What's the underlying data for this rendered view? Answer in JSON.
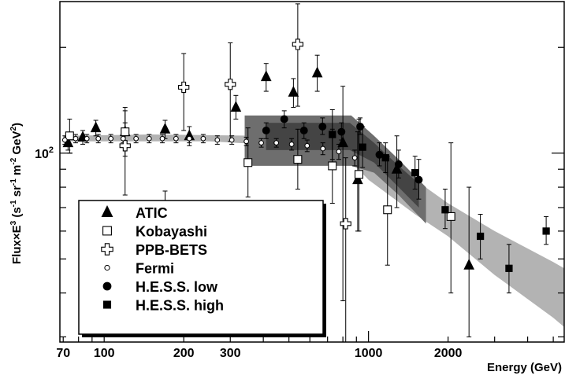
{
  "chart_data": {
    "type": "scatter",
    "xlabel": "Energy (GeV)",
    "ylabel": "Flux×E³ (s⁻¹ sr⁻¹ m⁻² GeV²)",
    "ylabel_parts": {
      "main": "Flux×E",
      "exp3": "3",
      "open": " (s",
      "e1": "-1",
      "sr": " sr",
      "e2": "-1",
      "m": " m",
      "e3": "-2",
      "gev": " GeV",
      "e4": "2",
      "close": ")"
    },
    "xscale": "log",
    "yscale": "log",
    "xlim": [
      68,
      5500
    ],
    "ylim": [
      29,
      270
    ],
    "x_ticks": [
      {
        "value": 70,
        "label": "70"
      },
      {
        "value": 100,
        "label": "100"
      },
      {
        "value": 200,
        "label": "200"
      },
      {
        "value": 300,
        "label": "300"
      },
      {
        "value": 1000,
        "label": "1000"
      },
      {
        "value": 2000,
        "label": "2000"
      }
    ],
    "y_ticks": [
      {
        "value": 100,
        "label_base": "10",
        "label_exp": "2"
      }
    ],
    "legend_position": "bottom-left",
    "legend": [
      {
        "name": "ATIC",
        "marker": "triangle"
      },
      {
        "name": "Kobayashi",
        "marker": "open-square"
      },
      {
        "name": "PPB-BETS",
        "marker": "open-cross"
      },
      {
        "name": "Fermi",
        "marker": "open-circle"
      },
      {
        "name": "H.E.S.S. low",
        "marker": "filled-circle"
      },
      {
        "name": "H.E.S.S. high",
        "marker": "filled-square"
      }
    ],
    "bands": [
      {
        "id": "fermi-band",
        "color": "#b3b3b3",
        "upper": [
          [
            70,
            112
          ],
          [
            150,
            113
          ],
          [
            250,
            112.5
          ],
          [
            400,
            112
          ],
          [
            600,
            111
          ],
          [
            800,
            110
          ],
          [
            1000,
            97
          ],
          [
            1500,
            84
          ],
          [
            2000,
            72
          ],
          [
            3000,
            60
          ],
          [
            5000,
            49
          ],
          [
            5500,
            47
          ]
        ],
        "lower": [
          [
            70,
            108
          ],
          [
            150,
            108
          ],
          [
            250,
            108
          ],
          [
            400,
            106
          ],
          [
            600,
            104
          ],
          [
            800,
            100
          ],
          [
            1000,
            84
          ],
          [
            1500,
            67
          ],
          [
            2000,
            58
          ],
          [
            3000,
            45
          ],
          [
            5000,
            34
          ],
          [
            5500,
            32
          ]
        ]
      },
      {
        "id": "hess-band-outer",
        "color": "#6e6e6e",
        "upper": [
          [
            340,
            128
          ],
          [
            600,
            128
          ],
          [
            860,
            128
          ],
          [
            1050,
            112
          ],
          [
            1300,
            96
          ],
          [
            1650,
            80
          ]
        ],
        "lower": [
          [
            340,
            92
          ],
          [
            600,
            92
          ],
          [
            860,
            92
          ],
          [
            1050,
            88
          ],
          [
            1300,
            76
          ],
          [
            1650,
            63
          ]
        ]
      },
      {
        "id": "hess-band-inner",
        "color": "#444444",
        "upper": [
          [
            410,
            122
          ],
          [
            850,
            122
          ],
          [
            1050,
            107
          ],
          [
            1300,
            92
          ],
          [
            1550,
            82
          ]
        ],
        "lower": [
          [
            410,
            102
          ],
          [
            850,
            102
          ],
          [
            1050,
            94
          ],
          [
            1300,
            80
          ],
          [
            1550,
            70
          ]
        ]
      }
    ],
    "series": [
      {
        "name": "ATIC",
        "marker": "triangle",
        "points": [
          {
            "x": 73,
            "y": 107,
            "lo": 102,
            "hi": 113
          },
          {
            "x": 83,
            "y": 111,
            "lo": 106,
            "hi": 116
          },
          {
            "x": 93,
            "y": 118,
            "lo": 112,
            "hi": 124
          },
          {
            "x": 120,
            "y": 115,
            "lo": 108,
            "hi": 122
          },
          {
            "x": 170,
            "y": 117,
            "lo": 110,
            "hi": 124
          },
          {
            "x": 210,
            "y": 112,
            "lo": 105,
            "hi": 119
          },
          {
            "x": 315,
            "y": 135,
            "lo": 125,
            "hi": 146
          },
          {
            "x": 410,
            "y": 165,
            "lo": 150,
            "hi": 180
          },
          {
            "x": 520,
            "y": 149,
            "lo": 135,
            "hi": 163
          },
          {
            "x": 640,
            "y": 169,
            "lo": 150,
            "hi": 190
          },
          {
            "x": 800,
            "y": 107,
            "lo": 38,
            "hi": 155
          },
          {
            "x": 910,
            "y": 84,
            "lo": 60,
            "hi": 115
          },
          {
            "x": 1280,
            "y": 90,
            "lo": 70,
            "hi": 112
          },
          {
            "x": 2400,
            "y": 48,
            "lo": 30,
            "hi": 80
          }
        ]
      },
      {
        "name": "Kobayashi",
        "marker": "open-square",
        "points": [
          {
            "x": 74,
            "y": 112,
            "lo": 100,
            "hi": 125
          },
          {
            "x": 120,
            "y": 115,
            "lo": 98,
            "hi": 135
          },
          {
            "x": 170,
            "y": 56,
            "lo": 40,
            "hi": 78
          },
          {
            "x": 350,
            "y": 94,
            "lo": 75,
            "hi": 118
          },
          {
            "x": 540,
            "y": 96,
            "lo": 79,
            "hi": 117
          },
          {
            "x": 730,
            "y": 92,
            "lo": 72,
            "hi": 117
          },
          {
            "x": 920,
            "y": 87,
            "lo": 60,
            "hi": 125
          },
          {
            "x": 1180,
            "y": 69,
            "lo": 48,
            "hi": 98
          },
          {
            "x": 2050,
            "y": 66,
            "lo": 40,
            "hi": 107
          }
        ]
      },
      {
        "name": "PPB-BETS",
        "marker": "open-cross",
        "points": [
          {
            "x": 120,
            "y": 105,
            "lo": 76,
            "hi": 132
          },
          {
            "x": 200,
            "y": 154,
            "lo": 116,
            "hi": 192
          },
          {
            "x": 300,
            "y": 157,
            "lo": 108,
            "hi": 206
          },
          {
            "x": 540,
            "y": 204,
            "lo": 136,
            "hi": 266
          },
          {
            "x": 820,
            "y": 63,
            "lo": 29,
            "hi": 97
          }
        ]
      },
      {
        "name": "Fermi",
        "marker": "open-circle",
        "points": [
          {
            "x": 71,
            "y": 109,
            "lo": 106,
            "hi": 112
          },
          {
            "x": 78,
            "y": 110,
            "lo": 107,
            "hi": 113
          },
          {
            "x": 86,
            "y": 110,
            "lo": 107,
            "hi": 113
          },
          {
            "x": 95,
            "y": 110,
            "lo": 107,
            "hi": 113
          },
          {
            "x": 106,
            "y": 110,
            "lo": 107,
            "hi": 113
          },
          {
            "x": 118,
            "y": 110,
            "lo": 107,
            "hi": 113
          },
          {
            "x": 132,
            "y": 110,
            "lo": 107,
            "hi": 113
          },
          {
            "x": 148,
            "y": 110,
            "lo": 107,
            "hi": 113
          },
          {
            "x": 166,
            "y": 110,
            "lo": 107,
            "hi": 113
          },
          {
            "x": 187,
            "y": 110,
            "lo": 107,
            "hi": 113
          },
          {
            "x": 210,
            "y": 110,
            "lo": 107,
            "hi": 113
          },
          {
            "x": 237,
            "y": 110,
            "lo": 107,
            "hi": 113
          },
          {
            "x": 268,
            "y": 109,
            "lo": 106,
            "hi": 112
          },
          {
            "x": 304,
            "y": 109,
            "lo": 106,
            "hi": 112
          },
          {
            "x": 345,
            "y": 108,
            "lo": 105,
            "hi": 111
          },
          {
            "x": 393,
            "y": 107,
            "lo": 104,
            "hi": 110
          },
          {
            "x": 448,
            "y": 107,
            "lo": 104,
            "hi": 110
          },
          {
            "x": 512,
            "y": 106,
            "lo": 102,
            "hi": 110
          },
          {
            "x": 586,
            "y": 105,
            "lo": 101,
            "hi": 109
          },
          {
            "x": 672,
            "y": 103,
            "lo": 99,
            "hi": 107
          },
          {
            "x": 772,
            "y": 101,
            "lo": 96,
            "hi": 106
          },
          {
            "x": 887,
            "y": 97,
            "lo": 92,
            "hi": 102
          }
        ]
      },
      {
        "name": "H.E.S.S. low",
        "marker": "filled-circle",
        "points": [
          {
            "x": 410,
            "y": 116,
            "lo": 110,
            "hi": 122
          },
          {
            "x": 480,
            "y": 125,
            "lo": 118,
            "hi": 132
          },
          {
            "x": 570,
            "y": 116,
            "lo": 110,
            "hi": 122
          },
          {
            "x": 670,
            "y": 119,
            "lo": 113,
            "hi": 126
          },
          {
            "x": 790,
            "y": 115,
            "lo": 109,
            "hi": 122
          },
          {
            "x": 930,
            "y": 119,
            "lo": 113,
            "hi": 126
          },
          {
            "x": 1100,
            "y": 99,
            "lo": 92,
            "hi": 107
          },
          {
            "x": 1300,
            "y": 93,
            "lo": 85,
            "hi": 102
          },
          {
            "x": 1550,
            "y": 84,
            "lo": 74,
            "hi": 96
          }
        ]
      },
      {
        "name": "H.E.S.S. high",
        "marker": "filled-square",
        "points": [
          {
            "x": 730,
            "y": 113,
            "lo": 96,
            "hi": 133
          },
          {
            "x": 950,
            "y": 104,
            "lo": 91,
            "hi": 119
          },
          {
            "x": 1160,
            "y": 97,
            "lo": 88,
            "hi": 107
          },
          {
            "x": 1500,
            "y": 88,
            "lo": 79,
            "hi": 98
          },
          {
            "x": 1950,
            "y": 69,
            "lo": 61,
            "hi": 79
          },
          {
            "x": 2650,
            "y": 58,
            "lo": 50,
            "hi": 67
          },
          {
            "x": 3400,
            "y": 47,
            "lo": 40,
            "hi": 55
          },
          {
            "x": 4700,
            "y": 60,
            "lo": 55,
            "hi": 66
          }
        ]
      }
    ]
  }
}
